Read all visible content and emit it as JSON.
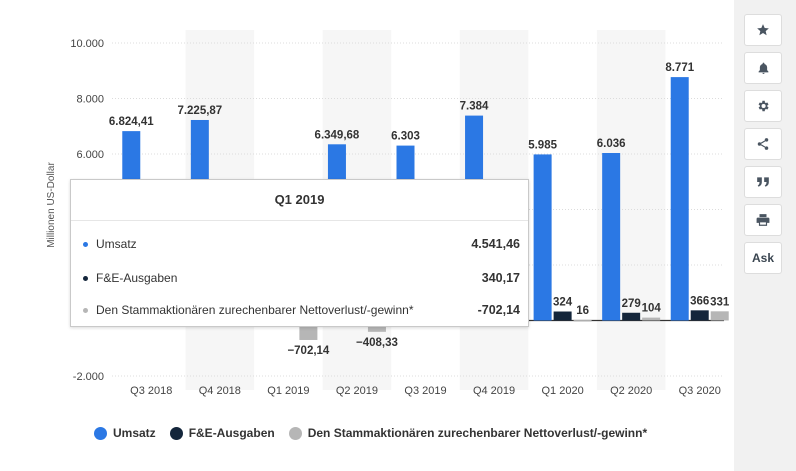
{
  "chart_data": {
    "type": "bar",
    "categories": [
      "Q3 2018",
      "Q4 2018",
      "Q1 2019",
      "Q2 2019",
      "Q3 2019",
      "Q4 2019",
      "Q1 2020",
      "Q2 2020",
      "Q3 2020"
    ],
    "series": [
      {
        "name": "Umsatz",
        "color": "#2b78e4",
        "values": [
          6824.41,
          7225.87,
          4541.46,
          6349.68,
          6303,
          7384,
          5985,
          6036,
          8771
        ],
        "labels": [
          "6.824,41",
          "7.225,87",
          "",
          "6.349,68",
          "6.303",
          "7.384",
          "5.985",
          "6.036",
          "8.771"
        ]
      },
      {
        "name": "F&E-Ausgaben",
        "color": "#14263b",
        "values": [
          null,
          null,
          340.17,
          null,
          null,
          null,
          324,
          279,
          366
        ],
        "labels": [
          "",
          "",
          "",
          "",
          "",
          "",
          "324",
          "279",
          "366"
        ]
      },
      {
        "name": "Den Stammaktionären zurechenbarer Nettoverlust/-gewinn*",
        "color": "#b6b6b6",
        "values": [
          null,
          null,
          -702.14,
          -408.33,
          null,
          null,
          16,
          104,
          331
        ],
        "labels": [
          "",
          "",
          "-702,14",
          "-408,33",
          "",
          "",
          "16",
          "104",
          "331"
        ]
      }
    ],
    "ylabel": "Millionen US-Dollar",
    "ylim": [
      -2000,
      10000
    ],
    "yticks": [
      "10.000",
      "8.000",
      "6.000",
      "-2.000"
    ],
    "grid": true,
    "legend_position": "bottom"
  },
  "tooltip": {
    "title": "Q1 2019",
    "rows": [
      {
        "label": "Umsatz",
        "value": "4.541,46",
        "color": "#2b78e4"
      },
      {
        "label": "F&E-Ausgaben",
        "value": "340,17",
        "color": "#14263b"
      },
      {
        "label": "Den Stammaktionären zurechenbarer Nettoverlust/-gewinn*",
        "value": "-702,14",
        "color": "#b6b6b6"
      }
    ]
  },
  "sidebar": {
    "buttons": [
      {
        "name": "star-icon"
      },
      {
        "name": "bell-icon"
      },
      {
        "name": "gear-icon"
      },
      {
        "name": "share-icon"
      },
      {
        "name": "quote-icon"
      },
      {
        "name": "print-icon"
      }
    ],
    "ask_label": "Ask"
  }
}
